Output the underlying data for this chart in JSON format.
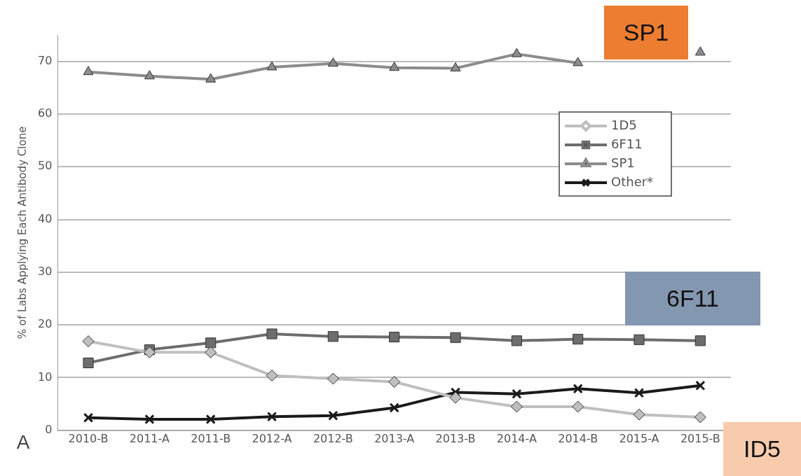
{
  "chart_data": {
    "type": "line",
    "ylabel": "% of Labs Applying Each Antibody Clone",
    "categories": [
      "2010-B",
      "2011-A",
      "2011-B",
      "2012-A",
      "2012-B",
      "2013-A",
      "2013-B",
      "2014-A",
      "2014-B",
      "2015-A",
      "2015-B"
    ],
    "series": [
      {
        "name": "1D5",
        "color": "#bfbfbf",
        "marker": "diamond",
        "values": [
          16.9,
          14.8,
          14.8,
          10.4,
          9.8,
          9.2,
          6.2,
          4.5,
          4.5,
          3.0,
          2.5
        ]
      },
      {
        "name": "6F11",
        "color": "#6d6d6d",
        "marker": "square",
        "values": [
          12.8,
          15.3,
          16.6,
          18.3,
          17.8,
          17.7,
          17.6,
          17.0,
          17.3,
          17.2,
          17.0
        ]
      },
      {
        "name": "SP1",
        "color": "#8c8c8c",
        "marker": "triangle",
        "values": [
          68.0,
          67.2,
          66.6,
          68.9,
          69.6,
          68.8,
          68.7,
          71.4,
          69.7,
          null,
          71.7
        ]
      },
      {
        "name": "Other*",
        "color": "#1a1a1a",
        "marker": "cross",
        "values": [
          2.4,
          2.1,
          2.1,
          2.6,
          2.8,
          4.3,
          7.2,
          6.9,
          7.9,
          7.1,
          8.5
        ]
      }
    ],
    "ylim": [
      0,
      75
    ],
    "yticks": [
      0,
      10,
      20,
      30,
      40,
      50,
      60,
      70
    ],
    "grid": "y",
    "legend": "right",
    "line_style": "solid",
    "annotations": [
      "SP1",
      "6F11",
      "ID5",
      "A"
    ]
  }
}
